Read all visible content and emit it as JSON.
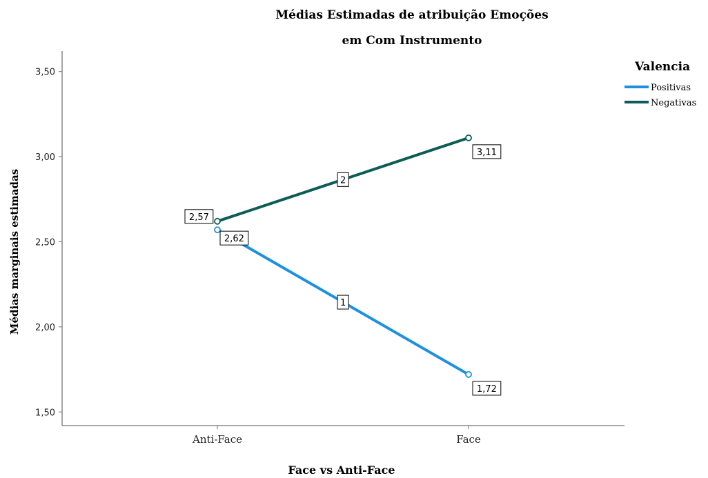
{
  "chart_data": {
    "type": "line",
    "title_line1": "Médias Estimadas de atribuição Emoções",
    "title_line2": "em Com Instrumento",
    "xlabel": "Face vs Anti-Face",
    "ylabel": "Médias marginais estimadas",
    "categories": [
      "Anti-Face",
      "Face"
    ],
    "ylim": [
      1.42,
      3.62
    ],
    "yticks": [
      1.5,
      2.0,
      2.5,
      3.0,
      3.5
    ],
    "ytick_labels": [
      "1,50",
      "2,00",
      "2,50",
      "3,00",
      "3,50"
    ],
    "grid": false,
    "legend": {
      "title": "Valencia",
      "position": "top-right"
    },
    "series": [
      {
        "name": "Positivas",
        "line_label": "1",
        "color": "#1e90e0",
        "values": [
          2.57,
          1.72
        ],
        "value_labels": [
          "2,57",
          "1,72"
        ]
      },
      {
        "name": "Negativas",
        "line_label": "2",
        "color": "#0d5c57",
        "values": [
          2.62,
          3.11
        ],
        "value_labels": [
          "2,62",
          "3,11"
        ]
      }
    ]
  }
}
